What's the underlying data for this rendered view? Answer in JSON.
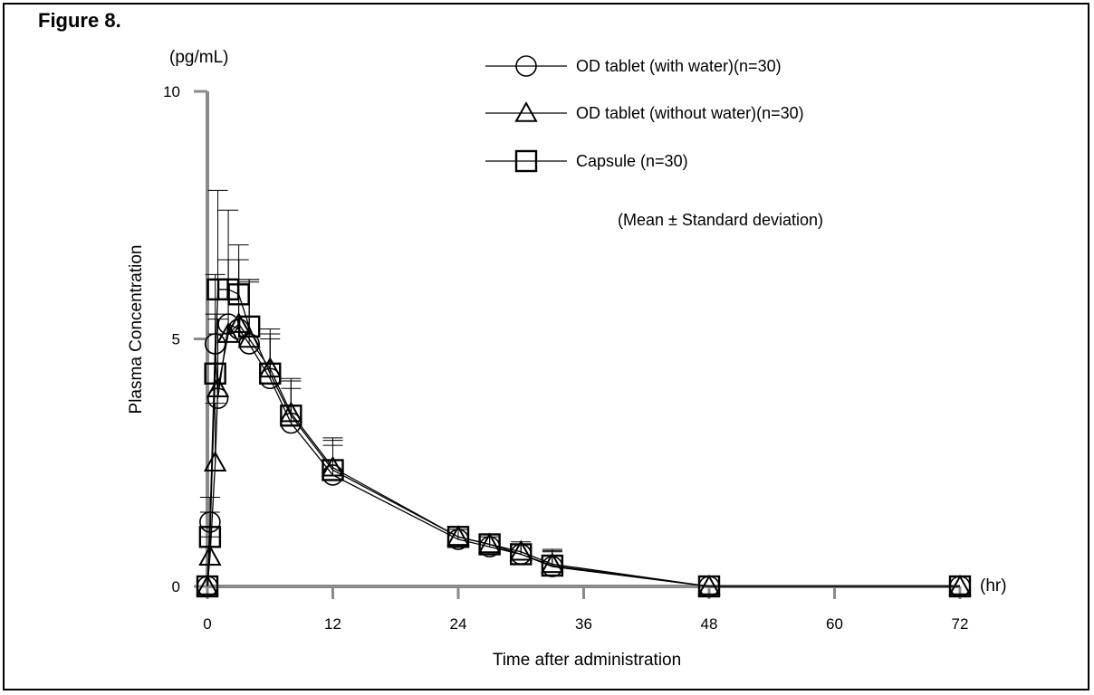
{
  "figure_label": "Figure 8.",
  "chart_data": {
    "type": "line",
    "title": "Figure 8.",
    "xlabel": "Time after administration",
    "ylabel": "Plasma Concentration",
    "y_unit": "(pg/mL)",
    "x_unit": "(hr)",
    "xlim": [
      0,
      72
    ],
    "ylim": [
      0,
      10
    ],
    "x_ticks": [
      0,
      12,
      24,
      36,
      48,
      60,
      72
    ],
    "y_ticks": [
      0,
      5,
      10
    ],
    "note": "(Mean ± Standard deviation)",
    "legend_position": "top-right",
    "series": [
      {
        "name": "OD tablet (with water)(n=30)",
        "marker": "circle",
        "x": [
          0,
          0.25,
          0.75,
          1,
          2,
          3,
          4,
          6,
          8,
          12,
          24,
          27,
          30,
          33,
          48,
          72
        ],
        "y": [
          0,
          1.3,
          4.9,
          3.8,
          5.3,
          5.2,
          4.9,
          4.2,
          3.3,
          2.25,
          0.95,
          0.8,
          0.65,
          0.4,
          0,
          0
        ],
        "err": [
          0,
          0.5,
          1.4,
          1.3,
          1.3,
          1.4,
          1.3,
          0.8,
          0.7,
          0.6,
          0.2,
          0.2,
          0.2,
          0.3,
          0,
          0
        ]
      },
      {
        "name": "OD tablet (without water)(n=30)",
        "marker": "triangle",
        "x": [
          0,
          0.25,
          0.75,
          1,
          2,
          3,
          4,
          6,
          8,
          12,
          24,
          27,
          30,
          33,
          48,
          72
        ],
        "y": [
          0,
          0.6,
          2.5,
          4.0,
          5.1,
          5.3,
          5.0,
          4.4,
          3.5,
          2.4,
          1.0,
          0.85,
          0.7,
          0.45,
          0,
          0
        ],
        "err": [
          0,
          0.4,
          1.2,
          1.4,
          1.5,
          1.3,
          1.2,
          0.8,
          0.7,
          0.6,
          0.2,
          0.2,
          0.2,
          0.3,
          0,
          0
        ]
      },
      {
        "name": "Capsule (n=30)",
        "marker": "square",
        "x": [
          0,
          0.25,
          0.75,
          1,
          2,
          3,
          4,
          6,
          8,
          12,
          24,
          27,
          30,
          33,
          48,
          72
        ],
        "y": [
          0,
          1.0,
          4.3,
          6.0,
          6.0,
          5.9,
          5.25,
          4.3,
          3.45,
          2.35,
          1.0,
          0.85,
          0.65,
          0.42,
          0,
          0
        ],
        "err": [
          0,
          0.5,
          1.2,
          2.0,
          1.6,
          1.0,
          0.9,
          0.8,
          0.7,
          0.6,
          0.2,
          0.2,
          0.2,
          0.3,
          0,
          0
        ]
      }
    ]
  }
}
